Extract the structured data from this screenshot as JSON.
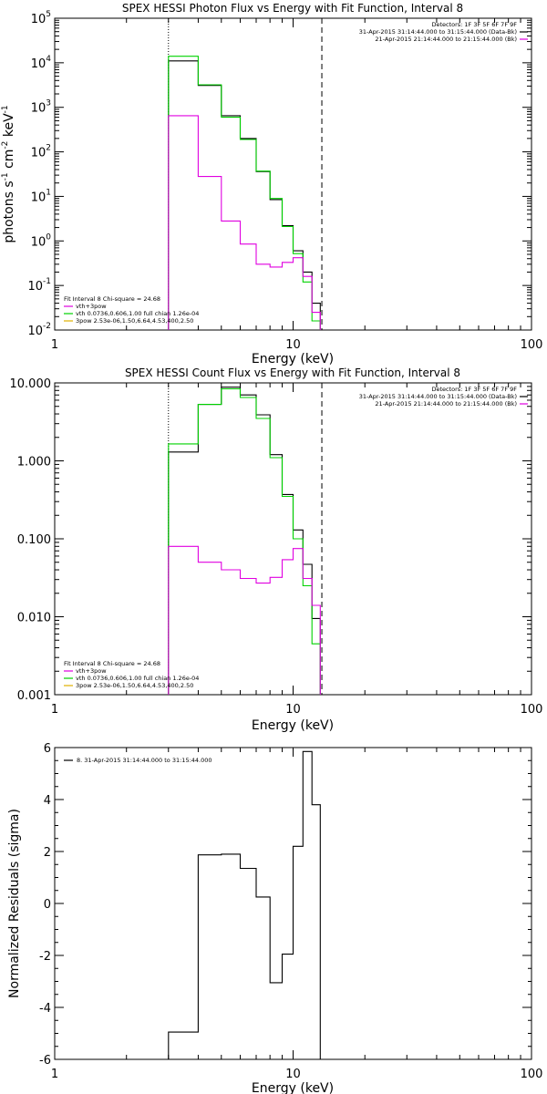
{
  "chart_data": [
    {
      "type": "line",
      "title": "SPEX HESSI Photon Flux vs Energy with Fit Function, Interval 8",
      "xlabel": "Energy (keV)",
      "ylabel": "photons s",
      "ylabel_sup1": "-1",
      "ylabel_mid": "cm",
      "ylabel_sup2": "-2",
      "ylabel_unit": "keV",
      "ylabel_sup3": "-1",
      "xscale": "log",
      "yscale": "log",
      "xlim": [
        1,
        100
      ],
      "ylim": [
        0.01,
        100000
      ],
      "xticks": [
        1,
        10,
        100
      ],
      "xtick_labels": [
        "1",
        "10",
        "100"
      ],
      "yticks": [
        0.01,
        0.1,
        1,
        10,
        100,
        1000,
        10000,
        100000
      ],
      "ytick_labels": [
        {
          "base": "10",
          "exp": "-2"
        },
        {
          "base": "10",
          "exp": "-1"
        },
        {
          "base": "10",
          "exp": "0"
        },
        {
          "base": "10",
          "exp": "1"
        },
        {
          "base": "10",
          "exp": "2"
        },
        {
          "base": "10",
          "exp": "3"
        },
        {
          "base": "10",
          "exp": "4"
        },
        {
          "base": "10",
          "exp": "5"
        }
      ],
      "bin_edges": [
        3.0,
        4.0,
        5.0,
        6.0,
        7.0,
        8.0,
        9.0,
        10.0,
        11.0,
        12.0,
        13.0
      ],
      "series": [
        {
          "color": "#000000",
          "values": [
            11000,
            3100,
            650,
            200,
            36,
            8.5,
            2.2,
            0.6,
            0.2,
            0.04
          ]
        },
        {
          "color": "#00d200",
          "values": [
            14000,
            3200,
            600,
            190,
            37,
            9.0,
            2.1,
            0.52,
            0.12,
            0.016
          ]
        },
        {
          "color": "#e000e0",
          "values": [
            650,
            28,
            2.8,
            0.85,
            0.3,
            0.26,
            0.33,
            0.42,
            0.16,
            0.025
          ]
        }
      ],
      "vlines": [
        {
          "x": 3.0,
          "style": "dotted"
        },
        {
          "x": 13.2,
          "style": "dashed"
        }
      ],
      "legend_topright": [
        {
          "text": "Detectors: 1F 3F 5F 6F 7F 9F"
        },
        {
          "text": "31-Apr-2015 31:14:44.000 to 31:15:44.000 (Data-Bk)",
          "color": "#000000"
        },
        {
          "text": "21-Apr-2015 21:14:44.000 to 21:15:44.000 (Bk)",
          "color": "#e000e0"
        }
      ],
      "legend_bottomleft": [
        {
          "text": "Fit Interval 8   Chi-square = 24.68"
        },
        {
          "text": "vth+3pow",
          "color": "#e000e0"
        },
        {
          "text": "vth 0.0736,0.606,1.00  full chian 1.26e-04",
          "color": "#00d200"
        },
        {
          "text": "3pow 2.53e-06,1.50,6.64,4.53,400,2.50",
          "color": "#e0b000"
        }
      ]
    },
    {
      "type": "line",
      "title": "SPEX HESSI Count Flux vs Energy with Fit Function, Interval 8",
      "xlabel": "Energy (keV)",
      "xscale": "log",
      "yscale": "log",
      "xlim": [
        1,
        100
      ],
      "ylim": [
        0.001,
        10
      ],
      "xticks": [
        1,
        10,
        100
      ],
      "xtick_labels": [
        "1",
        "10",
        "100"
      ],
      "yticks": [
        0.001,
        0.01,
        0.1,
        1,
        10
      ],
      "ytick_labels": [
        "0.001",
        "0.010",
        "0.100",
        "1.000",
        "10.000"
      ],
      "bin_edges": [
        3.0,
        4.0,
        5.0,
        6.0,
        7.0,
        8.0,
        9.0,
        10.0,
        11.0,
        12.0,
        13.0
      ],
      "series": [
        {
          "color": "#000000",
          "values": [
            1.3,
            5.3,
            8.8,
            7.0,
            3.9,
            1.2,
            0.37,
            0.13,
            0.047,
            0.0095
          ]
        },
        {
          "color": "#00d200",
          "values": [
            1.65,
            5.3,
            8.4,
            6.5,
            3.5,
            1.1,
            0.35,
            0.1,
            0.025,
            0.0045
          ]
        },
        {
          "color": "#e000e0",
          "values": [
            0.08,
            0.05,
            0.04,
            0.031,
            0.027,
            0.032,
            0.054,
            0.075,
            0.031,
            0.014
          ]
        }
      ],
      "vlines": [
        {
          "x": 3.0,
          "style": "dotted"
        },
        {
          "x": 13.2,
          "style": "dashed"
        }
      ],
      "legend_topright": [
        {
          "text": "Detectors: 1F 3F 5F 6F 7F 9F"
        },
        {
          "text": "31-Apr-2015 31:14:44.000 to 31:15:44.000 (Data-Bk)",
          "color": "#000000"
        },
        {
          "text": "21-Apr-2015 21:14:44.000 to 21:15:44.000 (Bk)",
          "color": "#e000e0"
        }
      ],
      "legend_bottomleft": [
        {
          "text": "Fit Interval 8   Chi-square = 24.68"
        },
        {
          "text": "vth+3pow",
          "color": "#e000e0"
        },
        {
          "text": "vth 0.0736,0.606,1.00  full chian 1.26e-04",
          "color": "#00d200"
        },
        {
          "text": "3pow 2.53e-06,1.50,6.64,4.53,400,2.50",
          "color": "#e0b000"
        }
      ]
    },
    {
      "type": "line",
      "title": "",
      "xlabel": "Energy (keV)",
      "ylabel": "Normalized Residuals (sigma)",
      "xscale": "log",
      "yscale": "linear",
      "xlim": [
        1,
        100
      ],
      "ylim": [
        -6,
        6
      ],
      "xticks": [
        1,
        10,
        100
      ],
      "xtick_labels": [
        "1",
        "10",
        "100"
      ],
      "yticks": [
        -6,
        -4,
        -2,
        0,
        2,
        4,
        6
      ],
      "ytick_labels": [
        "-6",
        "-4",
        "-2",
        "0",
        "2",
        "4",
        "6"
      ],
      "bin_edges": [
        3.0,
        4.0,
        5.0,
        6.0,
        7.0,
        8.0,
        9.0,
        10.0,
        11.0,
        12.0,
        13.0
      ],
      "series": [
        {
          "color": "#000000",
          "values": [
            -4.95,
            1.87,
            1.9,
            1.35,
            0.25,
            -3.05,
            -1.95,
            2.2,
            5.85,
            3.8
          ]
        }
      ],
      "legend_topright": [],
      "legend_bottomleft": [],
      "legend_topleft": [
        {
          "text": "8. 31-Apr-2015 31:14:44.000 to 31:15:44.000",
          "color": "#000000"
        }
      ]
    }
  ]
}
